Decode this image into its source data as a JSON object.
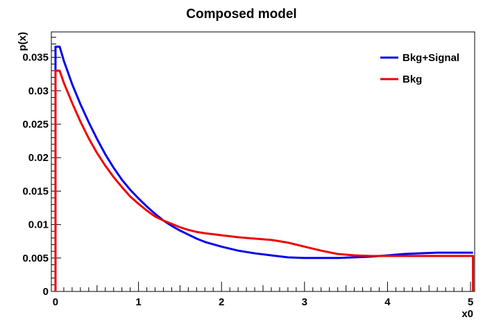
{
  "chart_data": {
    "type": "line",
    "title": "Composed model",
    "xlabel": "x0",
    "ylabel": "p(x)",
    "xlim": [
      -0.05,
      5.05
    ],
    "ylim": [
      0,
      0.0388
    ],
    "x_ticks": [
      0,
      1,
      2,
      3,
      4,
      5
    ],
    "x_tick_labels": [
      "0",
      "1",
      "2",
      "3",
      "4",
      "5"
    ],
    "y_ticks": [
      0,
      0.005,
      0.01,
      0.015,
      0.02,
      0.025,
      0.03,
      0.035
    ],
    "y_tick_labels": [
      "0",
      "0.005",
      "0.01",
      "0.015",
      "0.02",
      "0.025",
      "0.03",
      "0.035"
    ],
    "grid": false,
    "legend_position": "top-right",
    "series": [
      {
        "name": "Bkg+Signal",
        "color": "#0000ee",
        "x": [
          0,
          0.05,
          0.1,
          0.2,
          0.3,
          0.4,
          0.5,
          0.6,
          0.7,
          0.8,
          0.9,
          1.0,
          1.1,
          1.2,
          1.3,
          1.4,
          1.5,
          1.6,
          1.7,
          1.8,
          2.0,
          2.2,
          2.4,
          2.6,
          2.8,
          3.0,
          3.2,
          3.4,
          3.6,
          3.8,
          4.0,
          4.2,
          4.4,
          4.6,
          4.8,
          5.0
        ],
        "values": [
          0.0366,
          0.0366,
          0.0345,
          0.031,
          0.028,
          0.0253,
          0.0228,
          0.0205,
          0.0185,
          0.0167,
          0.0152,
          0.0139,
          0.0127,
          0.0116,
          0.0106,
          0.0098,
          0.0091,
          0.0085,
          0.0079,
          0.0074,
          0.0067,
          0.0061,
          0.0057,
          0.0054,
          0.0051,
          0.005,
          0.005,
          0.005,
          0.0051,
          0.0052,
          0.0054,
          0.0056,
          0.0057,
          0.0058,
          0.0058,
          0.0058
        ]
      },
      {
        "name": "Bkg",
        "color": "#ee0000",
        "x": [
          0,
          0.05,
          0.1,
          0.2,
          0.3,
          0.4,
          0.5,
          0.6,
          0.7,
          0.8,
          0.9,
          1.0,
          1.1,
          1.2,
          1.3,
          1.4,
          1.5,
          1.6,
          1.7,
          1.8,
          2.0,
          2.2,
          2.4,
          2.6,
          2.8,
          3.0,
          3.2,
          3.4,
          3.6,
          3.8,
          4.0,
          4.2,
          4.4,
          4.6,
          4.8,
          5.0
        ],
        "values": [
          0.033,
          0.033,
          0.0312,
          0.0282,
          0.0254,
          0.0229,
          0.0207,
          0.0188,
          0.0171,
          0.0156,
          0.0142,
          0.0131,
          0.0121,
          0.0112,
          0.0106,
          0.0101,
          0.0096,
          0.0092,
          0.0089,
          0.0087,
          0.0084,
          0.0081,
          0.0079,
          0.0077,
          0.0073,
          0.0067,
          0.0061,
          0.0056,
          0.0054,
          0.0053,
          0.0053,
          0.0053,
          0.0053,
          0.0053,
          0.0053,
          0.0053
        ]
      }
    ]
  }
}
